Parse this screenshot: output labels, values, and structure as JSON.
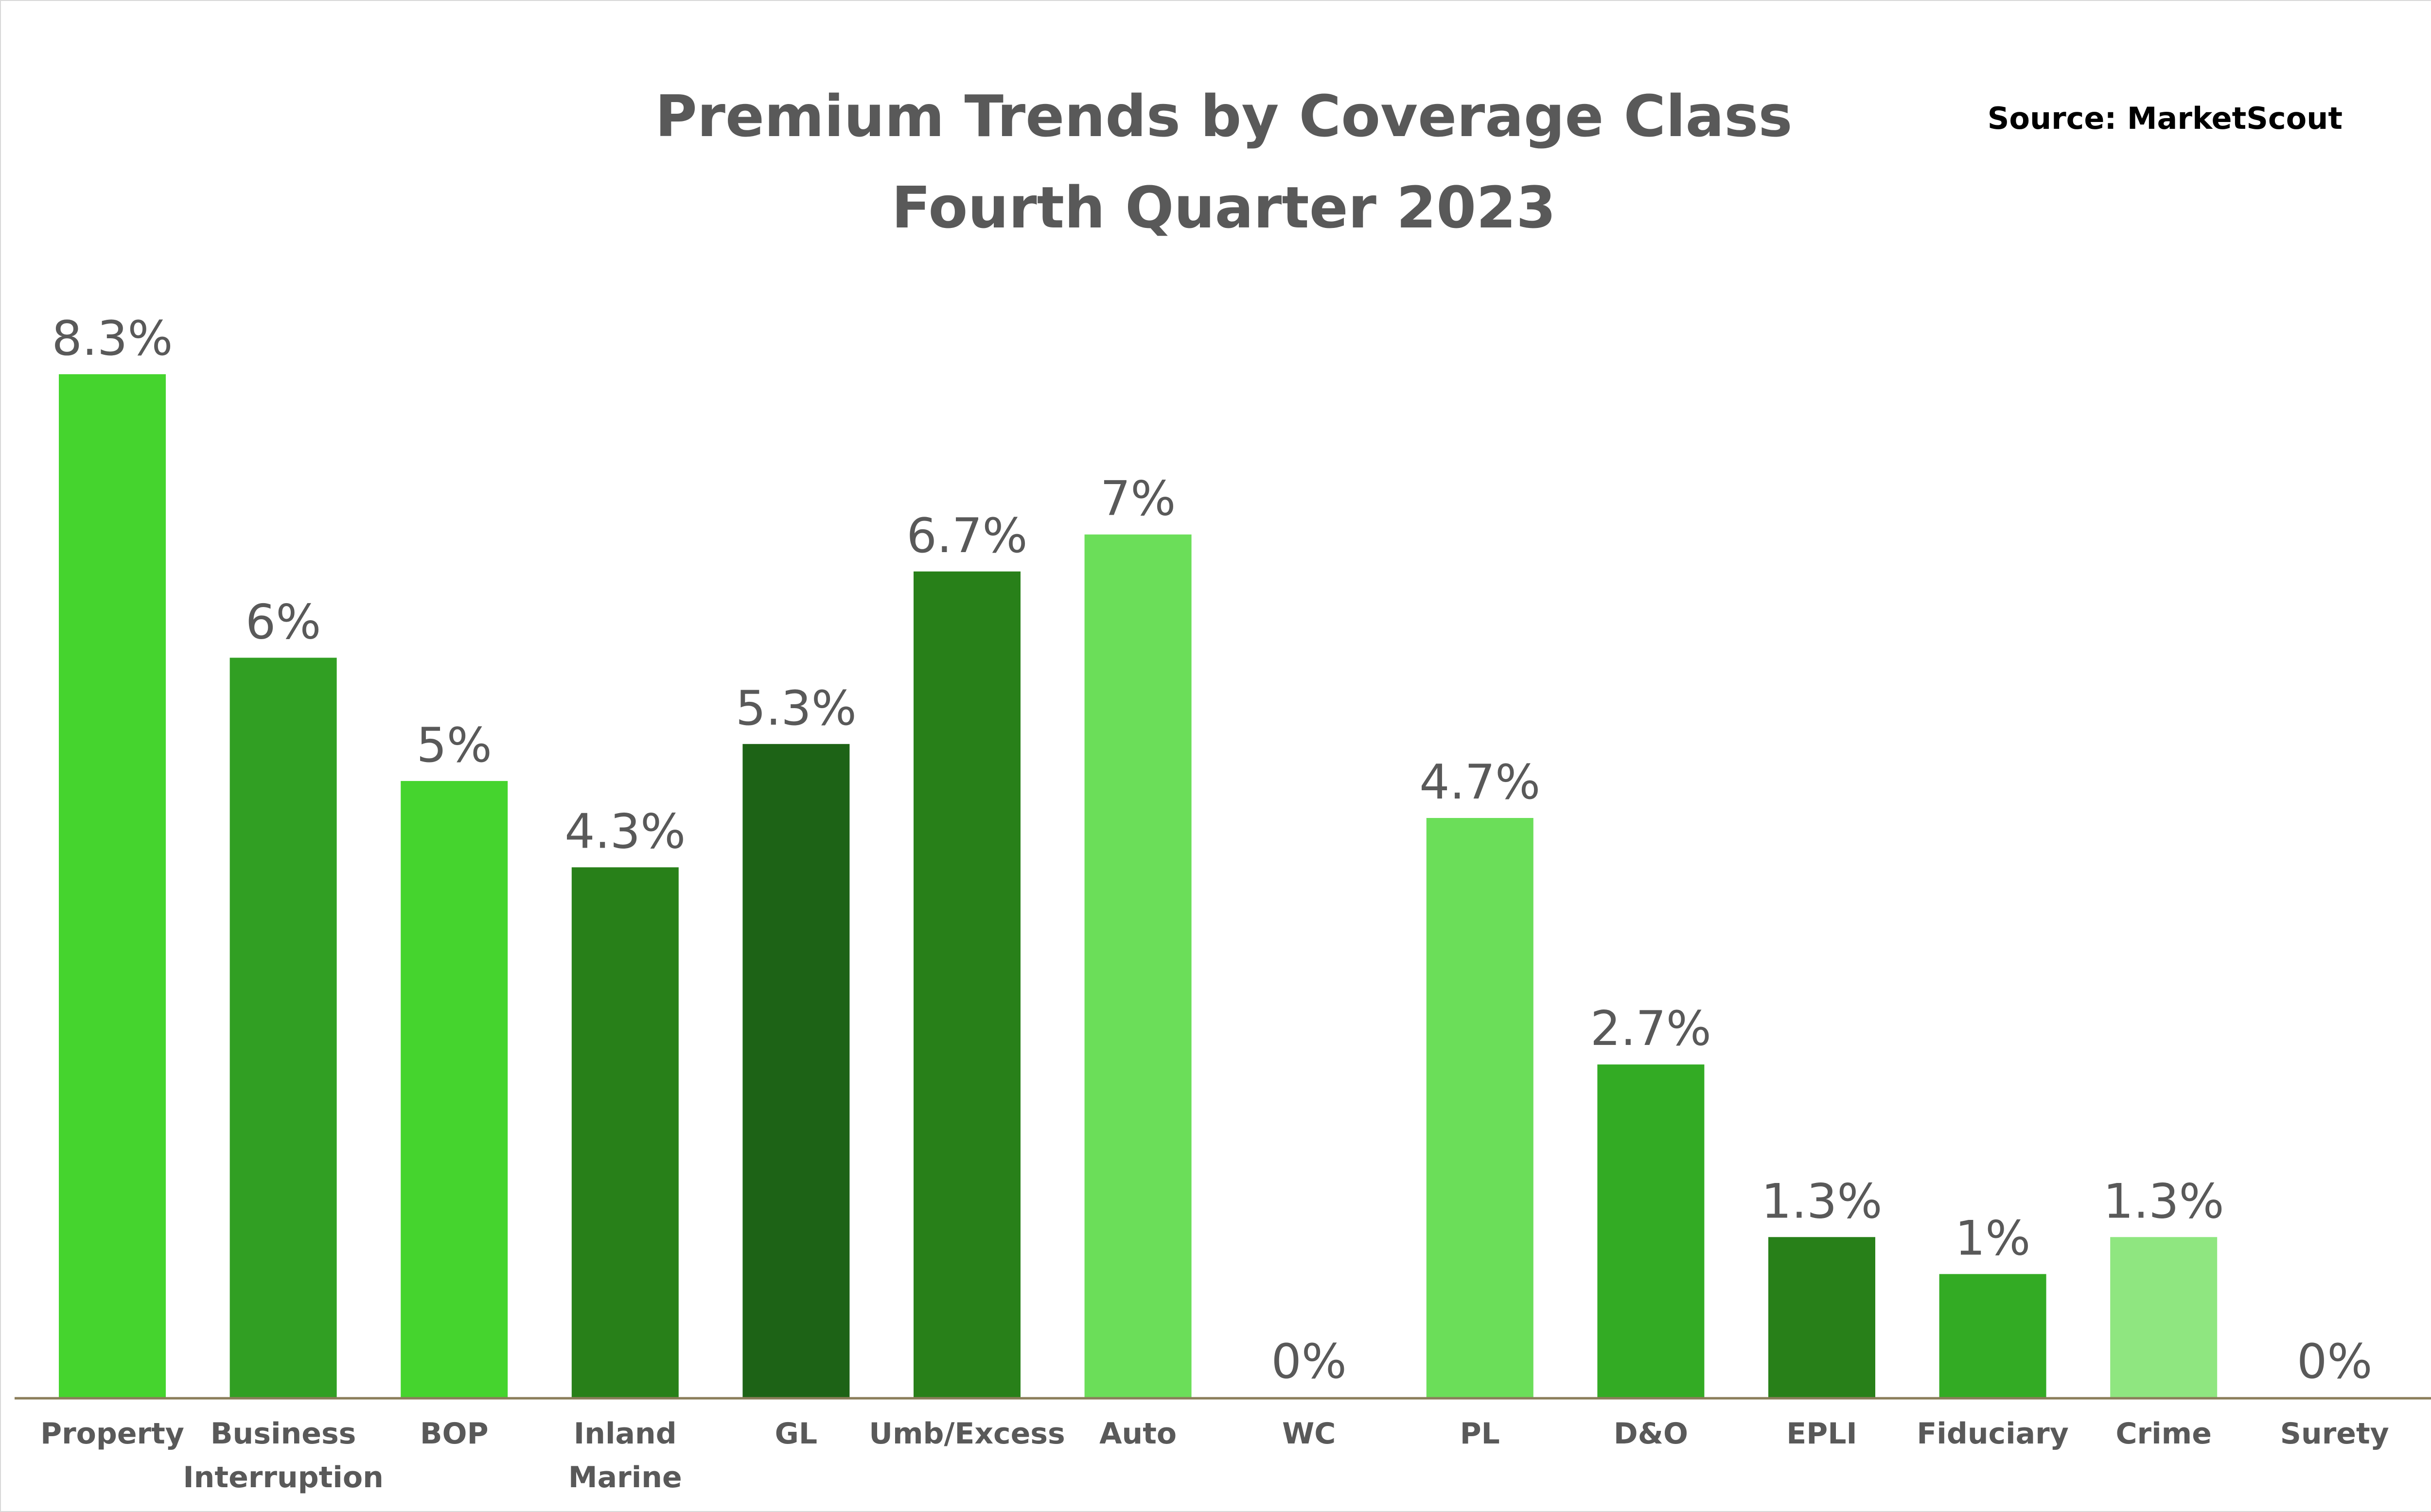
{
  "chart_data": {
    "type": "bar",
    "title": "Premium Trends by Coverage Class",
    "subtitle": "Fourth Quarter 2023",
    "source": "Source: MarketScout",
    "xlabel": "",
    "ylabel": "",
    "ylim": [
      0,
      8.3
    ],
    "grid": false,
    "legend": "none",
    "categories": [
      [
        "Property"
      ],
      [
        "Business",
        "Interruption"
      ],
      [
        "BOP"
      ],
      [
        "Inland",
        "Marine"
      ],
      [
        "GL"
      ],
      [
        "Umb/Excess"
      ],
      [
        "Auto"
      ],
      [
        "WC"
      ],
      [
        "PL"
      ],
      [
        "D&O"
      ],
      [
        "EPLI"
      ],
      [
        "Fiduciary"
      ],
      [
        "Crime"
      ],
      [
        "Surety"
      ]
    ],
    "values": [
      8.3,
      6,
      5,
      4.3,
      5.3,
      6.7,
      7,
      0,
      4.7,
      2.7,
      1.3,
      1,
      1.3,
      0
    ],
    "value_labels": [
      "8.3%",
      "6%",
      "5%",
      "4.3%",
      "5.3%",
      "6.7%",
      "7%",
      "0%",
      "4.7%",
      "2.7%",
      "1.3%",
      "1%",
      "1.3%",
      "0%"
    ],
    "colors": [
      "#45d42e",
      "#319f23",
      "#45d42e",
      "#288019",
      "#1d6316",
      "#288019",
      "#6bde59",
      "#6bde59",
      "#6bde59",
      "#33ab24",
      "#288019",
      "#33ab24",
      "#8fe680",
      "#8fe680"
    ],
    "axis_color": "#8b7d5a"
  }
}
